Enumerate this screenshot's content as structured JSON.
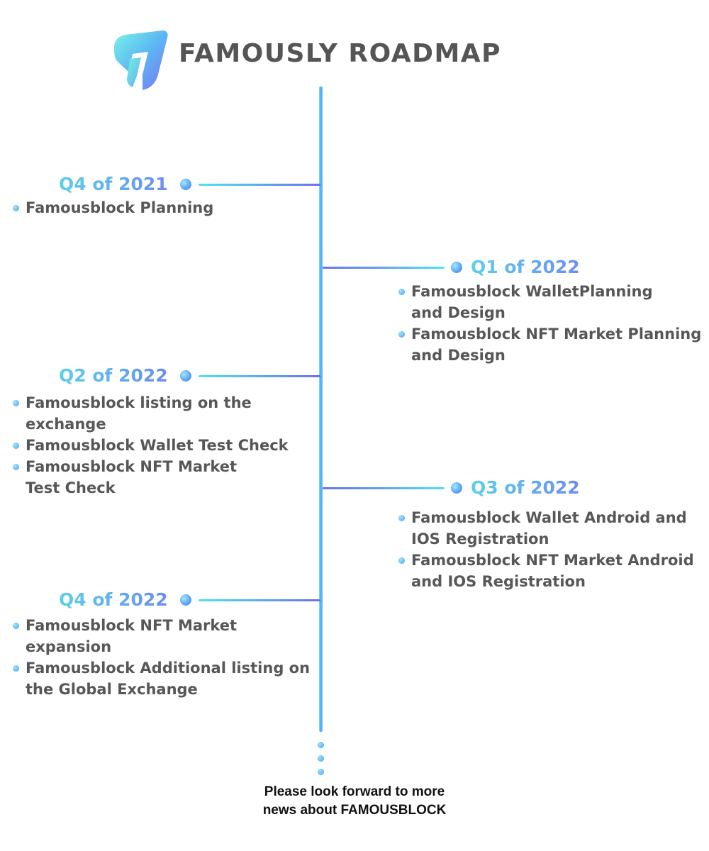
{
  "header": {
    "title": "FAMOUSLY ROADMAP",
    "logo_icon": "famously-logo-icon"
  },
  "colors": {
    "title_text": "#555555",
    "body_text": "#575757",
    "footer_text": "#111111",
    "accent_cyan": "#4fe2ef",
    "accent_blue": "#46a9f2",
    "accent_violet": "#6d6ff0"
  },
  "milestones": [
    {
      "label": "Q4 of 2021",
      "side": "left",
      "items": [
        [
          "Famousblock Planning"
        ]
      ]
    },
    {
      "label": "Q1 of 2022",
      "side": "right",
      "items": [
        [
          "Famousblock WalletPlanning",
          "and Design"
        ],
        [
          "Famousblock NFT Market Planning",
          "and Design"
        ]
      ]
    },
    {
      "label": "Q2 of 2022",
      "side": "left",
      "items": [
        [
          "Famousblock listing on the",
          "exchange"
        ],
        [
          "Famousblock Wallet Test Check"
        ],
        [
          "Famousblock NFT Market",
          "Test Check"
        ]
      ]
    },
    {
      "label": "Q3 of 2022",
      "side": "right",
      "items": [
        [
          "Famousblock Wallet Android and",
          "IOS Registration"
        ],
        [
          "Famousblock NFT Market Android",
          "and IOS Registration"
        ]
      ]
    },
    {
      "label": "Q4 of 2022",
      "side": "left",
      "items": [
        [
          "Famousblock NFT Market",
          "expansion"
        ],
        [
          "Famousblock Additional listing on",
          "the Global Exchange"
        ]
      ]
    }
  ],
  "footer": {
    "line1": "Please look forward to more",
    "line2": "news about FAMOUSBLOCK"
  }
}
